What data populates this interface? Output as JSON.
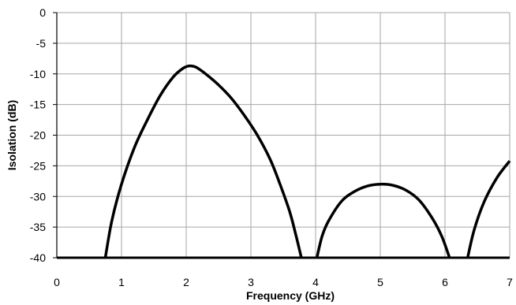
{
  "chart_data": {
    "type": "line",
    "xlabel": "Frequency (GHz)",
    "ylabel": "Isolation (dB)",
    "xlim": [
      0,
      7
    ],
    "ylim": [
      -40,
      0
    ],
    "x_ticks": [
      0,
      1,
      2,
      3,
      4,
      5,
      6,
      7
    ],
    "y_ticks": [
      0,
      -5,
      -10,
      -15,
      -20,
      -25,
      -30,
      -35,
      -40
    ],
    "grid": true,
    "line_color": "#000000",
    "grid_color": "#a6a6a6",
    "series": [
      {
        "x": [
          0.75,
          0.85,
          1.0,
          1.2,
          1.4,
          1.6,
          1.8,
          1.95,
          2.05,
          2.15,
          2.3,
          2.5,
          2.7,
          2.9,
          3.1,
          3.3,
          3.45,
          3.6,
          3.7,
          3.78
        ],
        "y": [
          -40,
          -34,
          -28,
          -22,
          -17.5,
          -13.5,
          -10.5,
          -9.1,
          -8.7,
          -8.9,
          -10,
          -11.8,
          -14,
          -16.8,
          -20,
          -24,
          -28,
          -32.5,
          -36.5,
          -40
        ]
      },
      {
        "x": [
          4.02,
          4.1,
          4.2,
          4.4,
          4.6,
          4.8,
          5.0,
          5.2,
          5.4,
          5.6,
          5.8,
          5.95,
          6.07
        ],
        "y": [
          -40,
          -36.5,
          -34,
          -30.8,
          -29.2,
          -28.3,
          -28.0,
          -28.2,
          -29.0,
          -30.6,
          -33.5,
          -36.5,
          -40
        ]
      },
      {
        "x": [
          6.35,
          6.45,
          6.6,
          6.8,
          7.0
        ],
        "y": [
          -40,
          -35.5,
          -31,
          -27,
          -24.2
        ]
      }
    ]
  }
}
